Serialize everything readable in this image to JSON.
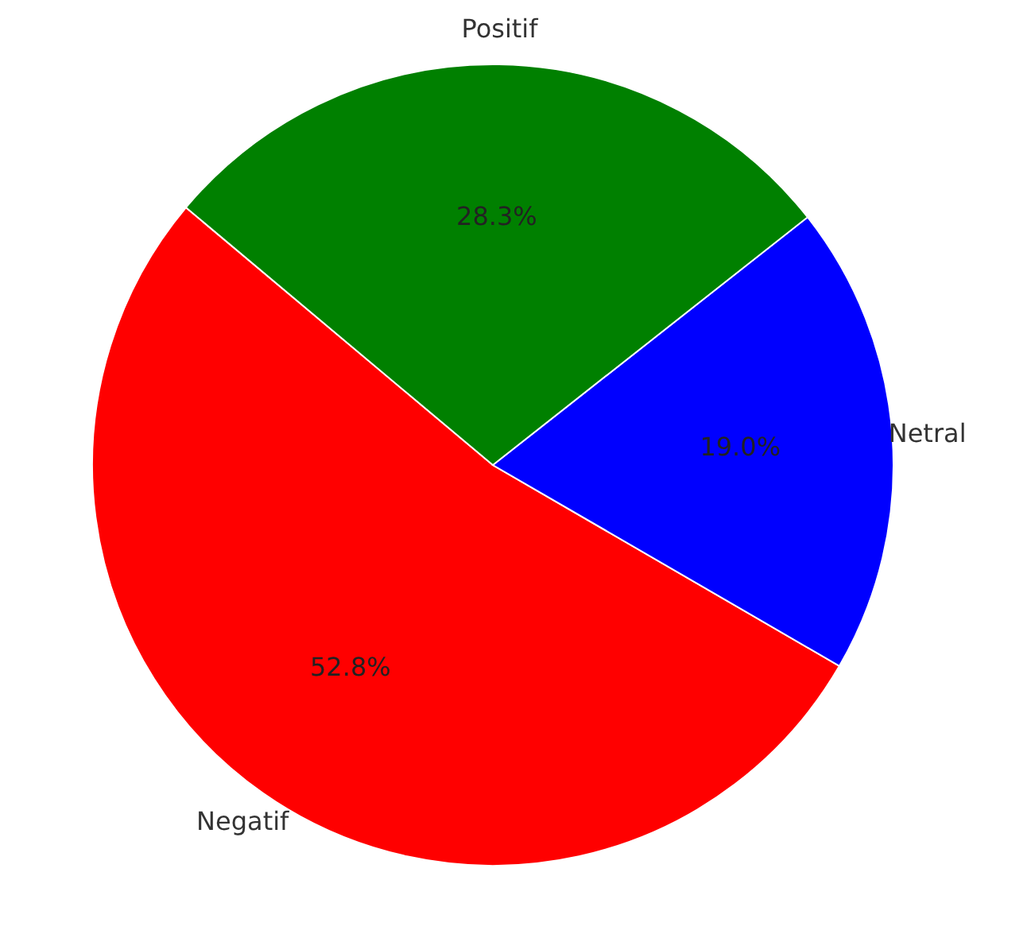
{
  "chart_data": {
    "type": "pie",
    "categories": [
      "Negatif",
      "Netral",
      "Positif"
    ],
    "values": [
      52.8,
      19.0,
      28.3
    ],
    "colors": [
      "#ff0000",
      "#0000ff",
      "#008000"
    ],
    "value_labels": [
      "52.8%",
      "19.0%",
      "28.3%"
    ]
  }
}
